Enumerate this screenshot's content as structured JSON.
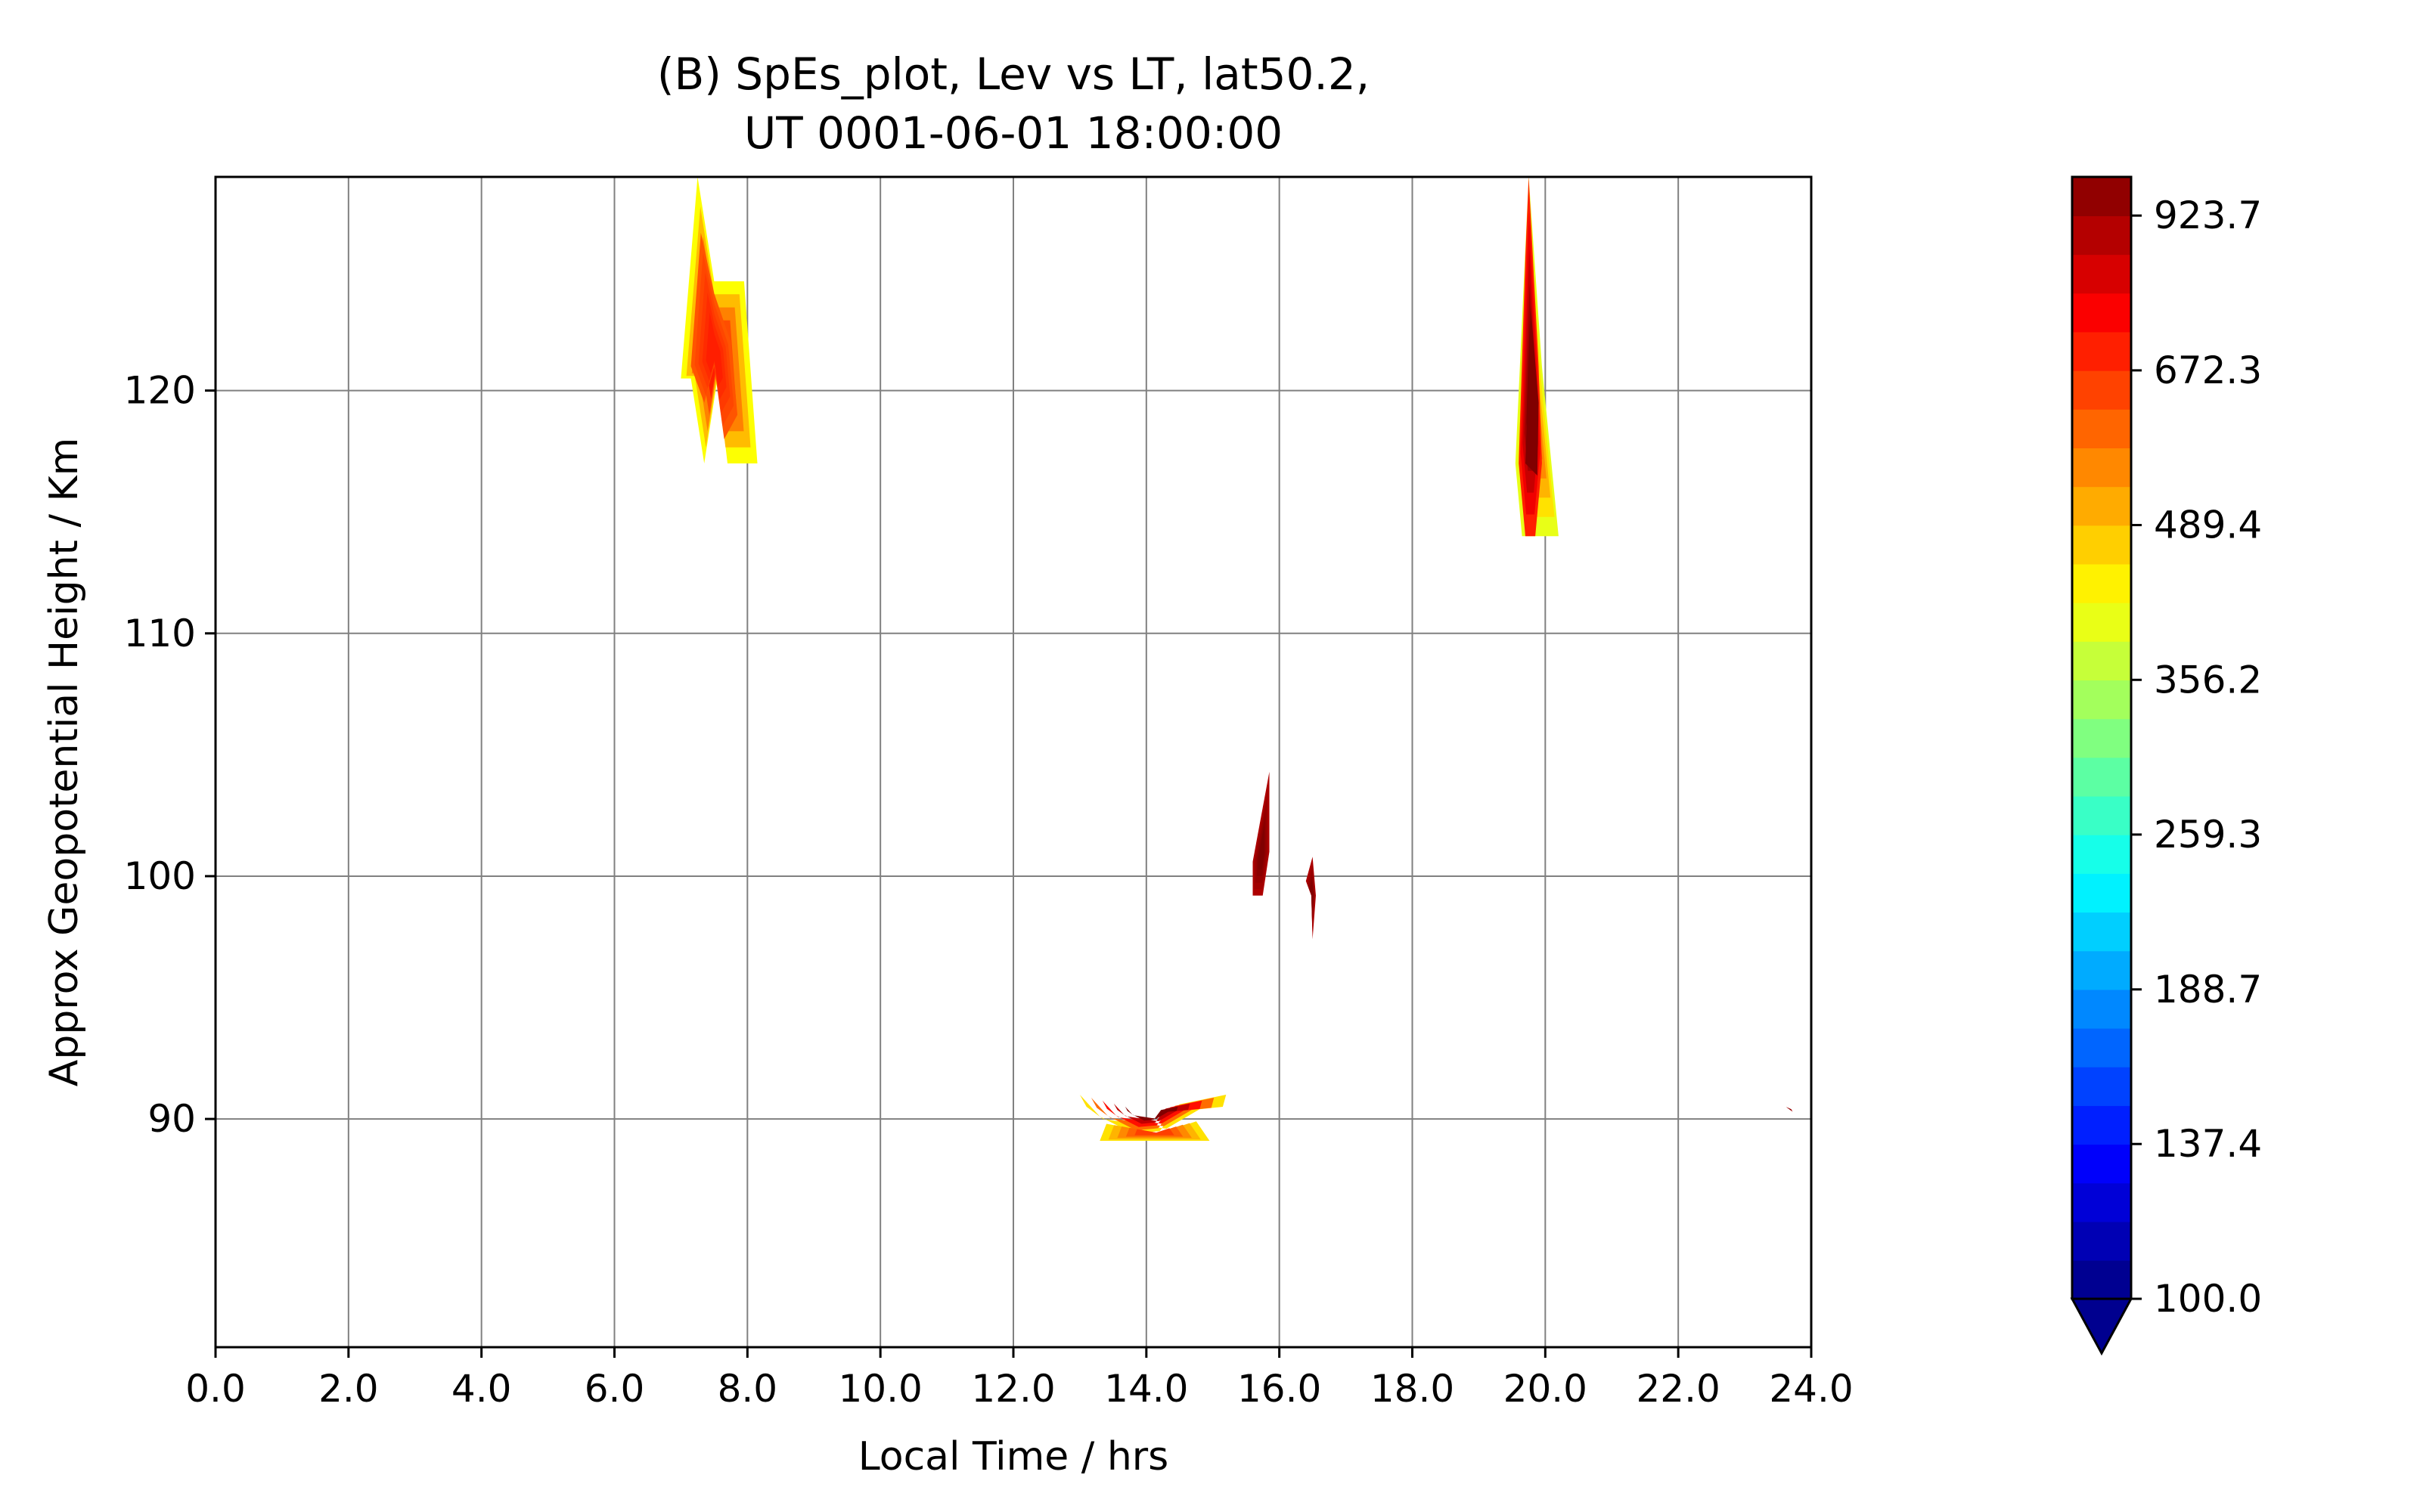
{
  "chart_data": {
    "type": "heatmap",
    "title_lines": [
      "(B) SpEs_plot, Lev vs LT, lat50.2,",
      "UT 0001-06-01 18:00:00"
    ],
    "xlabel": "Local Time / hrs",
    "ylabel": "Approx Geopotential Height / Km",
    "xlim": [
      0,
      24
    ],
    "ylim": [
      80.6,
      128.8
    ],
    "xticks": [
      0,
      2,
      4,
      6,
      8,
      10,
      12,
      14,
      16,
      18,
      20,
      22,
      24
    ],
    "xtick_labels": [
      "0.0",
      "2.0",
      "4.0",
      "6.0",
      "8.0",
      "10.0",
      "12.0",
      "14.0",
      "16.0",
      "18.0",
      "20.0",
      "22.0",
      "24.0"
    ],
    "yticks": [
      90,
      100,
      110,
      120
    ],
    "ytick_labels": [
      "90",
      "100",
      "110",
      "120"
    ],
    "grid": true,
    "colormap": "jet",
    "colorbar": {
      "ticks": [
        100.0,
        137.4,
        188.7,
        259.3,
        356.2,
        489.4,
        672.3,
        923.7
      ],
      "tick_labels": [
        "100.0",
        "137.4",
        "188.7",
        "259.3",
        "356.2",
        "489.4",
        "672.3",
        "923.7"
      ],
      "min": 100.0,
      "max": 1000.0,
      "levels": 29,
      "extend": "min"
    },
    "colors": {
      "grid": "#808080",
      "yellow_green": "#e6f51a",
      "yellow": "#ffd400",
      "orange": "#ff9a00",
      "dark_orange": "#ff6a00",
      "red": "#f21a00",
      "dark_red": "#a60000"
    },
    "features": [
      {
        "name": "dawn-patch-left",
        "value_range": [
          420,
          700
        ],
        "polygon": [
          [
            7.0,
            120.5
          ],
          [
            7.25,
            128.8
          ],
          [
            7.5,
            124.5
          ],
          [
            7.95,
            124.5
          ],
          [
            8.15,
            117
          ],
          [
            7.7,
            117
          ],
          [
            7.55,
            120.5
          ],
          [
            7.35,
            117
          ],
          [
            7.15,
            120.5
          ]
        ]
      },
      {
        "name": "dawn-patch-core",
        "value_range": [
          620,
          700
        ],
        "polygon": [
          [
            7.15,
            121
          ],
          [
            7.3,
            126.5
          ],
          [
            7.5,
            124
          ],
          [
            7.75,
            122
          ],
          [
            7.85,
            119
          ],
          [
            7.65,
            118
          ],
          [
            7.5,
            121
          ],
          [
            7.35,
            119.5
          ]
        ]
      },
      {
        "name": "dusk-ring-outer",
        "value_range": [
          400,
          600
        ],
        "polygon": [
          [
            19.55,
            117
          ],
          [
            19.75,
            128.8
          ],
          [
            19.95,
            121
          ],
          [
            20.2,
            114
          ],
          [
            19.65,
            114
          ]
        ]
      },
      {
        "name": "dusk-ring-red",
        "value_range": [
          700,
          1000
        ],
        "polygon": [
          [
            19.6,
            117
          ],
          [
            19.7,
            125.5
          ],
          [
            19.75,
            128.8
          ],
          [
            19.9,
            121
          ],
          [
            19.95,
            117
          ],
          [
            19.85,
            114
          ],
          [
            19.7,
            114
          ]
        ]
      },
      {
        "name": "dusk-ring-hole",
        "value_range": [
          1000,
          1000
        ],
        "polygon": [
          [
            19.7,
            117
          ],
          [
            19.78,
            123.5
          ],
          [
            19.9,
            119.5
          ],
          [
            19.88,
            116.5
          ]
        ]
      },
      {
        "name": "upper-spike",
        "value_range": [
          900,
          1000
        ],
        "polygon": [
          [
            15.6,
            99.2
          ],
          [
            15.6,
            100.6
          ],
          [
            15.85,
            104.3
          ],
          [
            15.85,
            101
          ],
          [
            15.75,
            99.2
          ]
        ]
      },
      {
        "name": "small-spike",
        "value_range": [
          900,
          1000
        ],
        "polygon": [
          [
            16.4,
            99.8
          ],
          [
            16.5,
            100.8
          ],
          [
            16.55,
            99.2
          ],
          [
            16.5,
            97.4
          ],
          [
            16.48,
            99.2
          ]
        ]
      },
      {
        "name": "lower-band",
        "value_range": [
          450,
          1000
        ],
        "polygon": [
          [
            13.0,
            91
          ],
          [
            13.1,
            90.5
          ],
          [
            13.35,
            90
          ],
          [
            14.3,
            89.6
          ],
          [
            14.8,
            90.4
          ],
          [
            15.15,
            90.5
          ],
          [
            15.2,
            91
          ],
          [
            14.5,
            90.6
          ],
          [
            14.2,
            89.5
          ],
          [
            13.8,
            89.4
          ],
          [
            13.3,
            90.1
          ]
        ]
      },
      {
        "name": "lower-band-fringe",
        "value_range": [
          450,
          650
        ],
        "polygon": [
          [
            13.3,
            89.1
          ],
          [
            13.4,
            89.8
          ],
          [
            14.2,
            89.4
          ],
          [
            14.75,
            89.9
          ],
          [
            14.95,
            89.1
          ]
        ]
      },
      {
        "name": "far-right-dot",
        "value_range": [
          900,
          1000
        ],
        "polygon": [
          [
            23.62,
            90.5
          ],
          [
            23.72,
            90.3
          ],
          [
            23.7,
            90.4
          ]
        ]
      }
    ]
  }
}
